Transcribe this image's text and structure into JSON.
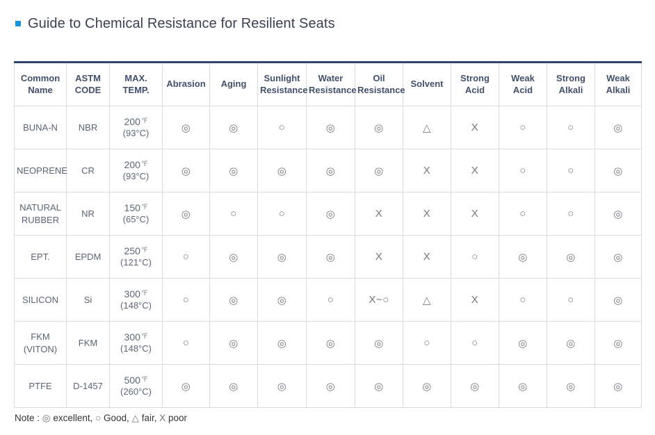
{
  "page": {
    "title": "Guide to Chemical Resistance for Resilient Seats",
    "note": {
      "prefix": "Note : ",
      "legend": [
        {
          "symbol": "◎",
          "label": "excellent"
        },
        {
          "symbol": "○",
          "label": "Good"
        },
        {
          "symbol": "△",
          "label": "fair"
        },
        {
          "symbol": "X",
          "label": "poor"
        }
      ]
    },
    "icons": {
      "title_bullet": "square-bullet",
      "title_bullet_color": "#1a96d5"
    },
    "colors": {
      "table_top_border": "#2e4272",
      "cell_border": "#dcdcdc",
      "header_text": "#42506b",
      "symbol_text": "#74787e"
    }
  },
  "table": {
    "columns": [
      "Common Name",
      "ASTM CODE",
      "MAX. TEMP.",
      "Abrasion",
      "Aging",
      "Sunlight Resistance",
      "Water Resistance",
      "Oil Resistance",
      "Solvent",
      "Strong Acid",
      "Weak Acid",
      "Strong Alkali",
      "Weak Alkali"
    ],
    "rows": [
      {
        "common_name": "BUNA-N",
        "astm_code": "NBR",
        "max_temp_value": "200",
        "max_temp_unit": "℉",
        "max_temp_c": "(93°C)",
        "ratings": [
          "◎",
          "◎",
          "○",
          "◎",
          "◎",
          "△",
          "X",
          "○",
          "○",
          "◎"
        ]
      },
      {
        "common_name": "NEOPRENE",
        "astm_code": "CR",
        "max_temp_value": "200",
        "max_temp_unit": "℉",
        "max_temp_c": "(93°C)",
        "ratings": [
          "◎",
          "◎",
          "◎",
          "◎",
          "◎",
          "X",
          "X",
          "○",
          "○",
          "◎"
        ]
      },
      {
        "common_name": "NATURAL RUBBER",
        "astm_code": "NR",
        "max_temp_value": "150",
        "max_temp_unit": "℉",
        "max_temp_c": "(65°C)",
        "ratings": [
          "◎",
          "○",
          "○",
          "◎",
          "X",
          "X",
          "X",
          "○",
          "○",
          "◎"
        ]
      },
      {
        "common_name": "EPT.",
        "astm_code": "EPDM",
        "max_temp_value": "250",
        "max_temp_unit": "℉",
        "max_temp_c": "(121°C)",
        "ratings": [
          "○",
          "◎",
          "◎",
          "◎",
          "X",
          "X",
          "○",
          "◎",
          "◎",
          "◎"
        ]
      },
      {
        "common_name": "SILICON",
        "astm_code": "Si",
        "max_temp_value": "300",
        "max_temp_unit": "℉",
        "max_temp_c": "(148°C)",
        "ratings": [
          "○",
          "◎",
          "◎",
          "○",
          "X~○",
          "△",
          "X",
          "○",
          "○",
          "◎"
        ]
      },
      {
        "common_name": "FKM (VITON)",
        "astm_code": "FKM",
        "max_temp_value": "300",
        "max_temp_unit": "℉",
        "max_temp_c": "(148°C)",
        "ratings": [
          "○",
          "◎",
          "◎",
          "◎",
          "◎",
          "○",
          "○",
          "◎",
          "◎",
          "◎"
        ]
      },
      {
        "common_name": "PTFE",
        "astm_code": "D-1457",
        "max_temp_value": "500",
        "max_temp_unit": "℉",
        "max_temp_c": "(260°C)",
        "ratings": [
          "◎",
          "◎",
          "◎",
          "◎",
          "◎",
          "◎",
          "◎",
          "◎",
          "◎",
          "◎"
        ]
      }
    ]
  }
}
